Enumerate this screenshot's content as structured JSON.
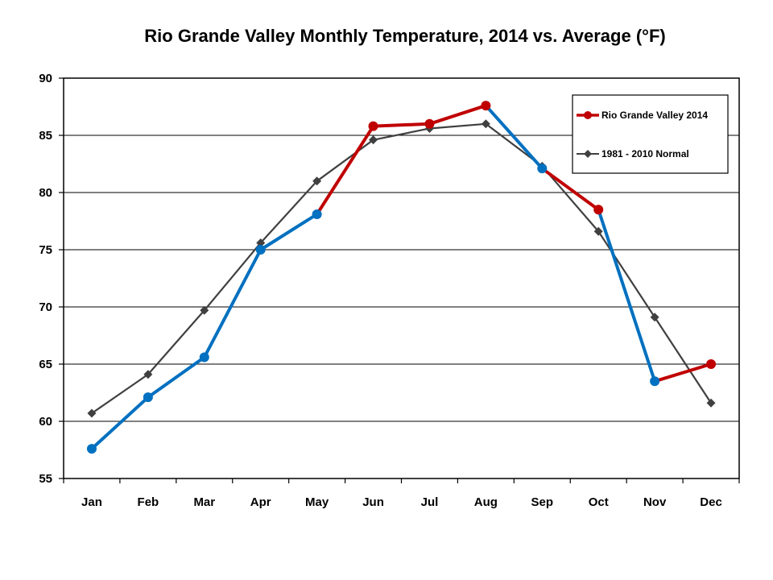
{
  "chart_data": {
    "type": "line",
    "title": "Rio Grande Valley Monthly Temperature, 2014 vs. Average (°F)",
    "xlabel": "",
    "ylabel": "",
    "categories": [
      "Jan",
      "Feb",
      "Mar",
      "Apr",
      "May",
      "Jun",
      "Jul",
      "Aug",
      "Sep",
      "Oct",
      "Nov",
      "Dec"
    ],
    "ylim": [
      55,
      90
    ],
    "yticks": [
      55,
      60,
      65,
      70,
      75,
      80,
      85,
      90
    ],
    "grid": true,
    "legend_position": "top-right",
    "series": [
      {
        "name": "Rio Grande Valley 2014",
        "values": [
          57.6,
          62.1,
          65.6,
          75.0,
          78.1,
          85.8,
          86.0,
          87.6,
          82.1,
          78.5,
          63.5,
          65.0
        ],
        "color": "#c00000",
        "below_normal_color": "#0070c0",
        "marker": "circle"
      },
      {
        "name": "1981 - 2010 Normal",
        "values": [
          60.7,
          64.1,
          69.7,
          75.6,
          81.0,
          84.6,
          85.6,
          86.0,
          82.3,
          76.6,
          69.1,
          61.6
        ],
        "color": "#404040",
        "marker": "diamond"
      }
    ]
  }
}
